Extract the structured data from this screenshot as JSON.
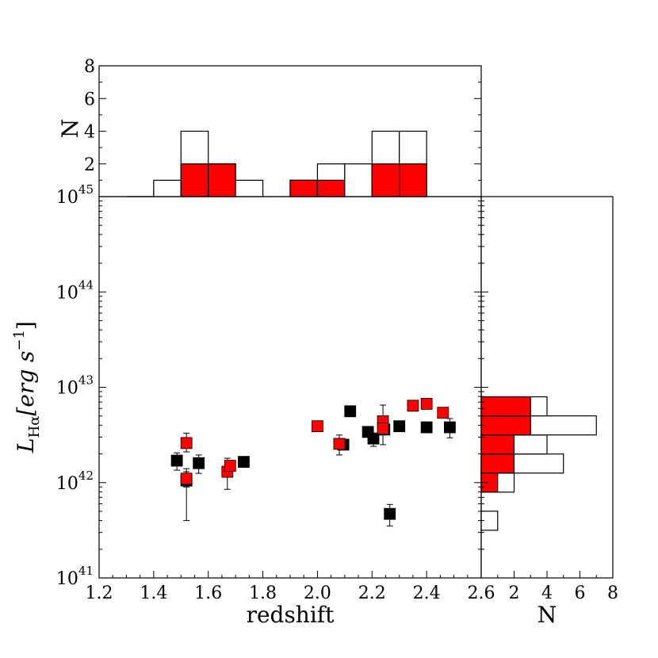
{
  "chart_data": {
    "type": "scatter",
    "xlabel": "redshift",
    "ylabel": "L_Hα[erg s^-1]",
    "ylabel_parts": {
      "L": "L",
      "sub": "Hα",
      "bracket": "[erg s",
      "sup": "−1",
      "close": "]"
    },
    "xlim": [
      1.2,
      2.6
    ],
    "ylim_log10": [
      41,
      45
    ],
    "yscale": "log",
    "xticks": [
      "1.2",
      "1.4",
      "1.6",
      "1.8",
      "2.0",
      "2.2",
      "2.4",
      "2.6"
    ],
    "ytick_labels": [
      {
        "exp": 41,
        "base": "10",
        "sup": "41"
      },
      {
        "exp": 42,
        "base": "10",
        "sup": "42"
      },
      {
        "exp": 43,
        "base": "10",
        "sup": "43"
      },
      {
        "exp": 44,
        "base": "10",
        "sup": "44"
      },
      {
        "exp": 45,
        "base": "10",
        "sup": "45"
      }
    ],
    "series": [
      {
        "color": "#000000",
        "points": [
          {
            "x": 1.485,
            "y": 1.7e+42,
            "ylo": 1.35e+42,
            "yhi": 2.05e+42
          },
          {
            "x": 1.52,
            "y": 1.05e+42,
            "ylo": 4e+41,
            "yhi": 1.3e+42
          },
          {
            "x": 1.565,
            "y": 1.6e+42,
            "ylo": 1.25e+42,
            "yhi": 1.95e+42
          },
          {
            "x": 1.73,
            "y": 1.65e+42
          },
          {
            "x": 2.095,
            "y": 2.5e+42
          },
          {
            "x": 2.12,
            "y": 5.6e+42
          },
          {
            "x": 2.185,
            "y": 3.4e+42
          },
          {
            "x": 2.205,
            "y": 2.9e+42,
            "ylo": 2.4e+42,
            "yhi": 3.1e+42
          },
          {
            "x": 2.245,
            "y": 3.6e+42
          },
          {
            "x": 2.265,
            "y": 4.7e+41,
            "ylo": 3.5e+41,
            "yhi": 5.9e+41
          },
          {
            "x": 2.3,
            "y": 3.9e+42
          },
          {
            "x": 2.4,
            "y": 3.8e+42
          },
          {
            "x": 2.485,
            "y": 3.8e+42,
            "ylo": 2.95e+42,
            "yhi": 4.7e+42
          }
        ]
      },
      {
        "color": "#ff0000",
        "points": [
          {
            "x": 1.52,
            "y": 2.6e+42,
            "ylo": 2.1e+42,
            "yhi": 3.3e+42
          },
          {
            "x": 1.52,
            "y": 1.1e+42,
            "ylo": 9e+41,
            "yhi": 1.4e+42
          },
          {
            "x": 1.67,
            "y": 1.3e+42,
            "ylo": 8.5e+41,
            "yhi": 1.8e+42
          },
          {
            "x": 1.68,
            "y": 1.5e+42
          },
          {
            "x": 2.0,
            "y": 3.9e+42
          },
          {
            "x": 2.08,
            "y": 2.55e+42,
            "ylo": 1.95e+42,
            "yhi": 3.15e+42
          },
          {
            "x": 2.24,
            "y": 4.4e+42,
            "ylo": 2.5e+42,
            "yhi": 6.5e+42
          },
          {
            "x": 2.24,
            "y": 3.7e+42
          },
          {
            "x": 2.35,
            "y": 6.4e+42
          },
          {
            "x": 2.4,
            "y": 6.7e+42
          },
          {
            "x": 2.46,
            "y": 5.4e+42
          }
        ]
      }
    ],
    "top_hist": {
      "ylabel": "N",
      "ylim": [
        0,
        8
      ],
      "yticks": [
        "2",
        "4",
        "6",
        "8"
      ],
      "bins": [
        {
          "x0": 1.3,
          "x1": 1.4,
          "all": 0,
          "red": 0
        },
        {
          "x0": 1.4,
          "x1": 1.5,
          "all": 1,
          "red": 0
        },
        {
          "x0": 1.5,
          "x1": 1.6,
          "all": 4,
          "red": 2
        },
        {
          "x0": 1.6,
          "x1": 1.7,
          "all": 2,
          "red": 2
        },
        {
          "x0": 1.7,
          "x1": 1.8,
          "all": 1,
          "red": 0
        },
        {
          "x0": 1.8,
          "x1": 1.9,
          "all": 0,
          "red": 0
        },
        {
          "x0": 1.9,
          "x1": 2.0,
          "all": 1,
          "red": 1
        },
        {
          "x0": 2.0,
          "x1": 2.1,
          "all": 2,
          "red": 1
        },
        {
          "x0": 2.1,
          "x1": 2.2,
          "all": 2,
          "red": 0
        },
        {
          "x0": 2.2,
          "x1": 2.3,
          "all": 4,
          "red": 2
        },
        {
          "x0": 2.3,
          "x1": 2.4,
          "all": 4,
          "red": 2
        }
      ]
    },
    "right_hist": {
      "xlabel": "N",
      "xlim": [
        0,
        8
      ],
      "xticks": [
        "2",
        "4",
        "6",
        "8"
      ],
      "bins": [
        {
          "y0": 41.5,
          "y1": 41.7,
          "all": 1,
          "red": 0
        },
        {
          "y0": 41.9,
          "y1": 42.1,
          "all": 2,
          "red": 1
        },
        {
          "y0": 42.1,
          "y1": 42.3,
          "all": 5,
          "red": 2
        },
        {
          "y0": 42.3,
          "y1": 42.5,
          "all": 4,
          "red": 2
        },
        {
          "y0": 42.5,
          "y1": 42.7,
          "all": 7,
          "red": 3
        },
        {
          "y0": 42.7,
          "y1": 42.9,
          "all": 4,
          "red": 3
        }
      ]
    }
  }
}
